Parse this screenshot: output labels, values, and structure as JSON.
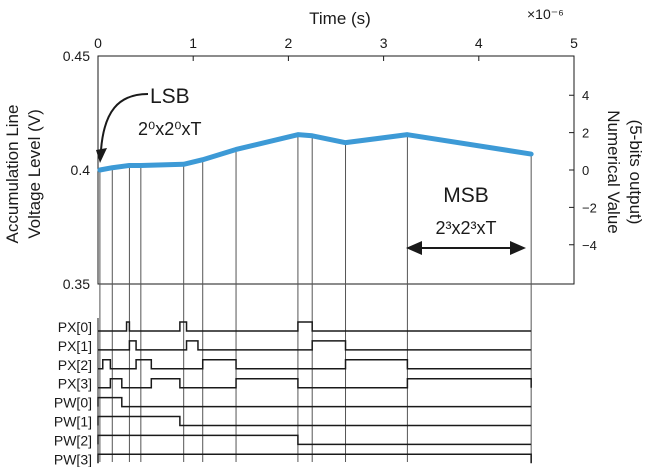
{
  "chart_data": {
    "type": "line",
    "top_xlabel": "Time (s)",
    "top_xscale": "×10⁻⁶",
    "xlim": [
      0,
      5
    ],
    "xticks": [
      "0",
      "1",
      "2",
      "3",
      "4",
      "5"
    ],
    "left_ylabel_line1": "Accumulation Line",
    "left_ylabel_line2": "Voltage Level (V)",
    "ylim": [
      0.35,
      0.45
    ],
    "left_yticks": [
      "0.45",
      "0.4",
      "0.35"
    ],
    "right_ylabel_line1": "Numerical Value",
    "right_ylabel_line2": "(5-bits output)",
    "right_ylim": [
      -6.1,
      6.1
    ],
    "right_yticks": [
      "4",
      "2",
      "0",
      "-2",
      "-4"
    ],
    "series": [
      {
        "color": "#3d9ad6",
        "x": [
          0.02,
          0.15,
          0.33,
          0.45,
          0.9,
          1.1,
          1.45,
          2.1,
          2.25,
          2.6,
          3.25,
          4.55
        ],
        "y": [
          0.4,
          0.401,
          0.402,
          0.402,
          0.4025,
          0.4045,
          0.409,
          0.4155,
          0.415,
          0.412,
          0.4155,
          0.407
        ]
      }
    ],
    "annotations": {
      "lsb_label": "LSB",
      "lsb_formula": "2⁰x2⁰xT",
      "msb_label": "MSB",
      "msb_formula": "2³x2³xT"
    },
    "signals": {
      "names": [
        "PX[0]",
        "PX[1]",
        "PX[2]",
        "PX[3]",
        "PW[0]",
        "PW[1]",
        "PW[2]",
        "PW[3]"
      ],
      "pulses": [
        [
          [
            0.3,
            0.33
          ],
          [
            0.86,
            0.93
          ],
          [
            2.1,
            2.25
          ]
        ],
        [
          [
            0.33,
            0.4
          ],
          [
            0.93,
            1.05
          ],
          [
            2.25,
            2.6
          ]
        ],
        [
          [
            0.05,
            0.13
          ],
          [
            0.4,
            0.56
          ],
          [
            1.1,
            1.45
          ],
          [
            2.6,
            3.25
          ]
        ],
        [
          [
            0.13,
            0.25
          ],
          [
            0.56,
            0.86
          ],
          [
            1.45,
            2.1
          ],
          [
            3.25,
            4.55
          ]
        ],
        [
          [
            0.0,
            0.25
          ]
        ],
        [
          [
            0.0,
            0.86
          ]
        ],
        [
          [
            0.0,
            2.1
          ]
        ],
        [
          [
            0.0,
            4.55
          ]
        ]
      ]
    },
    "grid": false,
    "legend": "none"
  }
}
